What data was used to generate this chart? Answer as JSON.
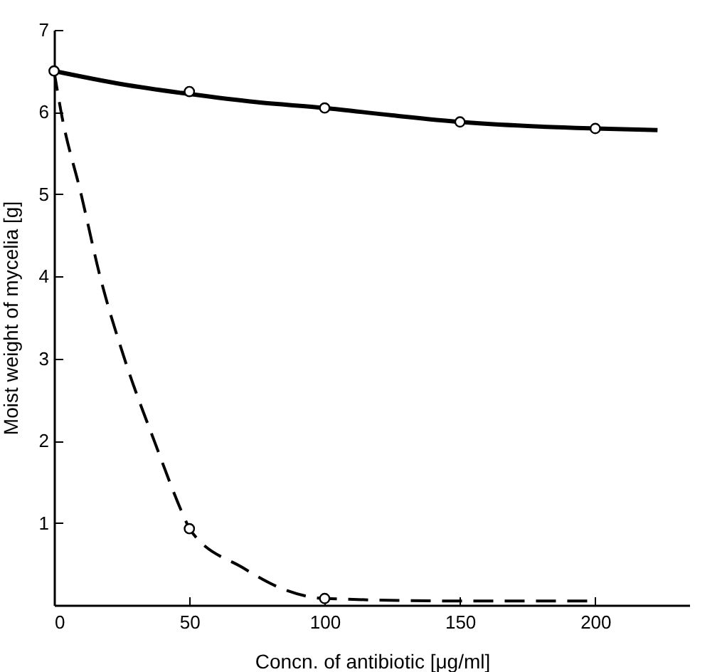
{
  "chart_data": {
    "type": "line",
    "xlabel": "Concn. of antibiotic [μg/ml]",
    "ylabel": "Moist weight of mycelia [g]",
    "xlim": [
      0,
      235
    ],
    "ylim": [
      0,
      7
    ],
    "xticks": [
      0,
      50,
      100,
      150,
      200
    ],
    "yticks": [
      1,
      2,
      3,
      4,
      5,
      6,
      7
    ],
    "grid": false,
    "series": [
      {
        "color": "#000000",
        "line_style": "solid",
        "marker": "none",
        "x": [
          0,
          25,
          50,
          75,
          100,
          125,
          150,
          175,
          200,
          223
        ],
        "values": [
          6.5,
          6.34,
          6.22,
          6.12,
          6.05,
          5.96,
          5.88,
          5.83,
          5.8,
          5.78
        ]
      },
      {
        "color": "#000000",
        "line_style": "dashed",
        "marker": "none",
        "x": [
          0,
          2.6,
          10,
          17,
          26,
          37,
          49,
          50,
          70,
          85,
          100,
          150,
          200
        ],
        "values": [
          6.5,
          6,
          5,
          4,
          3,
          2,
          1,
          0.93,
          0.45,
          0.19,
          0.08,
          0.05,
          0.05
        ]
      },
      {
        "type": "scatter",
        "color": "#000000",
        "marker": "circle",
        "x": [
          0,
          50,
          100,
          150,
          200
        ],
        "values": [
          6.5,
          6.25,
          6.05,
          5.88,
          5.8
        ]
      },
      {
        "type": "scatter",
        "color": "#000000",
        "marker": "circle",
        "x": [
          50,
          100
        ],
        "values": [
          0.93,
          0.08
        ]
      }
    ]
  }
}
